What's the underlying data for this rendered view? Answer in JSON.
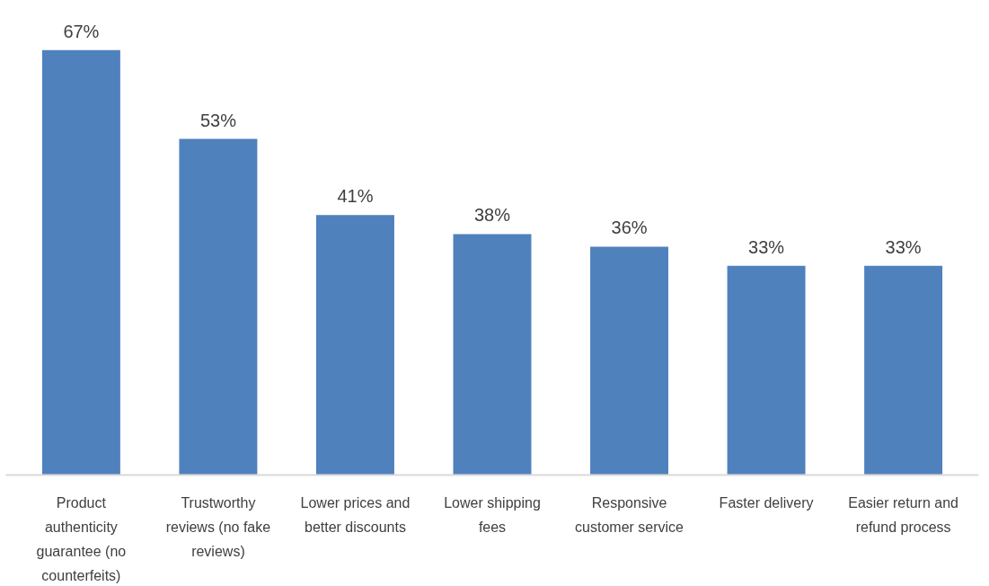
{
  "chart_data": {
    "type": "bar",
    "categories": [
      "Product authenticity guarantee (no counterfeits)",
      "Trustworthy reviews (no fake reviews)",
      "Lower prices and better discounts",
      "Lower shipping fees",
      "Responsive customer service",
      "Faster delivery",
      "Easier return and refund process"
    ],
    "values": [
      67,
      53,
      41,
      38,
      36,
      33,
      33
    ],
    "value_labels": [
      "67%",
      "53%",
      "41%",
      "38%",
      "36%",
      "33%",
      "33%"
    ],
    "color": "#4f81bd"
  }
}
